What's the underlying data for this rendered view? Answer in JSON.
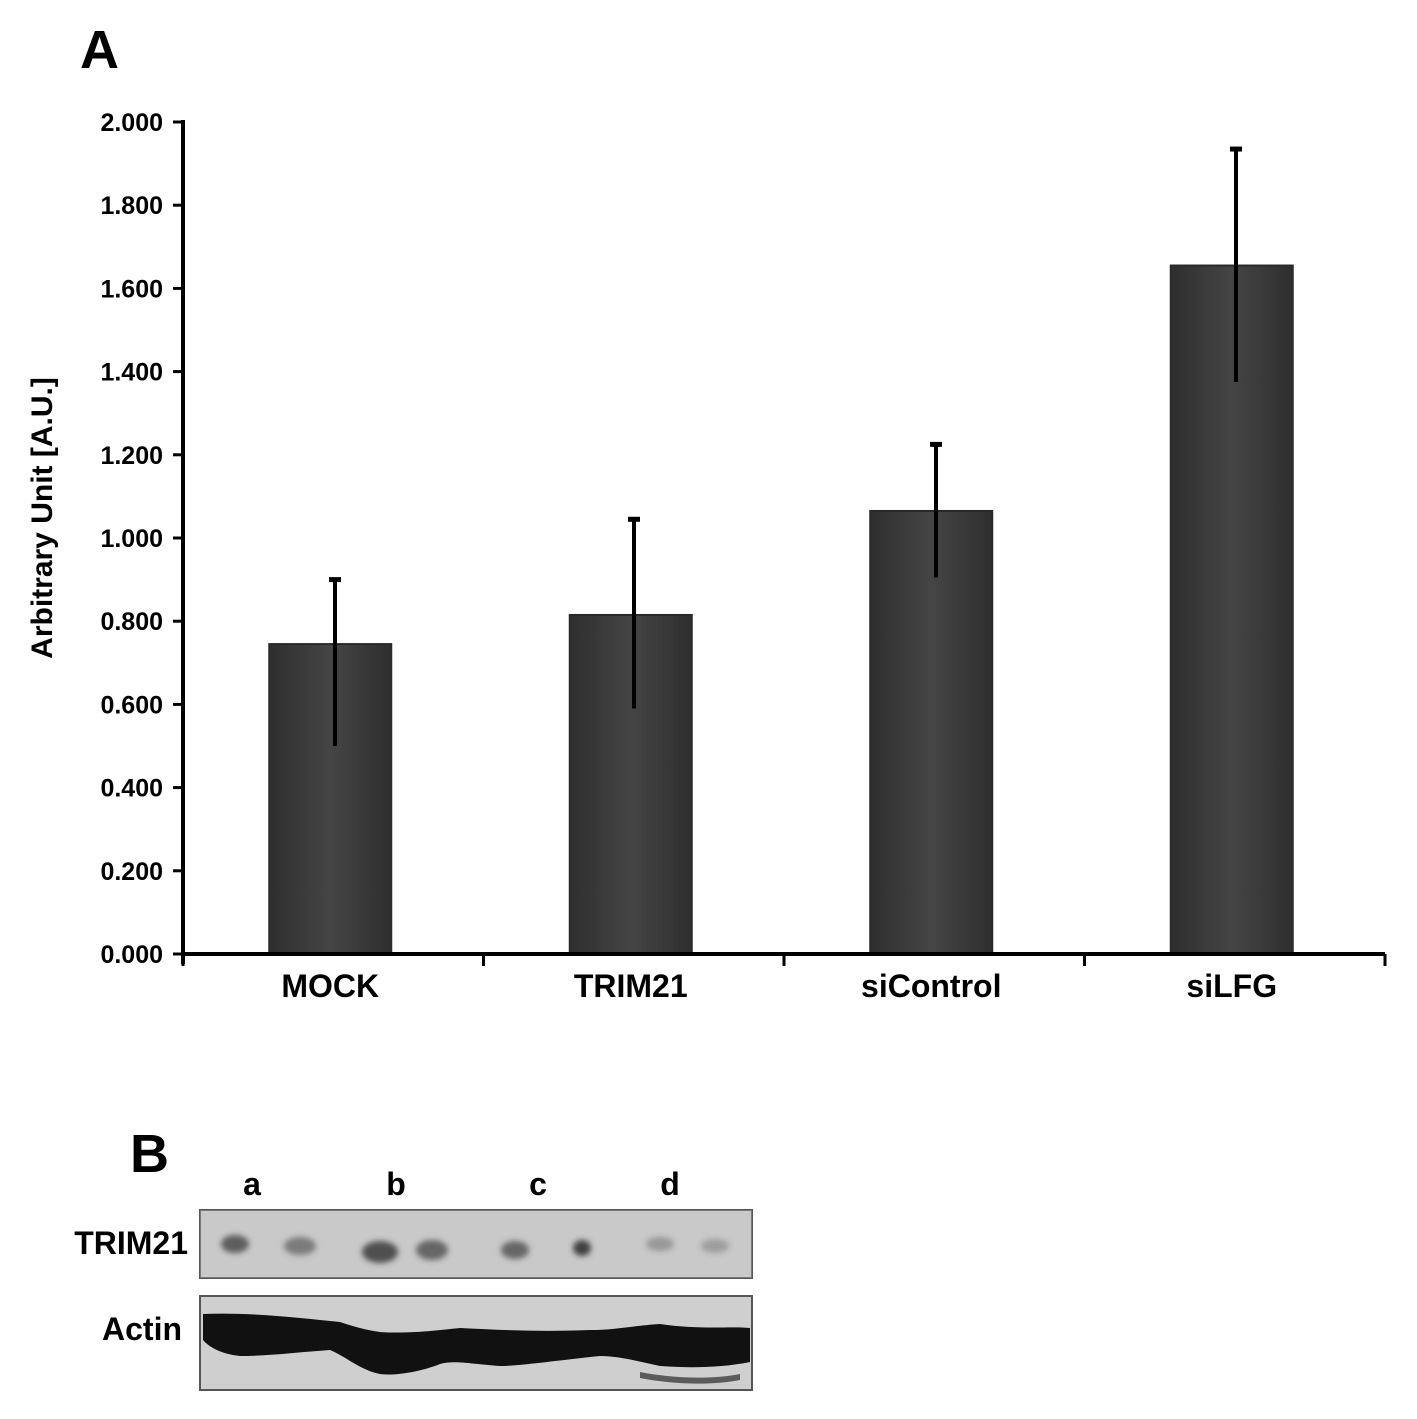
{
  "panel_a_label": "A",
  "panel_b_label": "B",
  "chart_data": {
    "type": "bar",
    "ylabel": "Arbitrary Unit [A.U.]",
    "xlabel": "",
    "ylim": [
      0,
      2
    ],
    "yticks": [
      "0.000",
      "0.200",
      "0.400",
      "0.600",
      "0.800",
      "1.000",
      "1.200",
      "1.400",
      "1.600",
      "1.800",
      "2.000"
    ],
    "categories": [
      "MOCK",
      "TRIM21",
      "siControl",
      "siLFG"
    ],
    "values": [
      0.745,
      0.815,
      1.065,
      1.655
    ],
    "error_low": [
      0.5,
      0.59,
      0.905,
      1.375
    ],
    "error_high": [
      0.9,
      1.045,
      1.225,
      1.935
    ],
    "grid": false,
    "colors": {
      "bar": "#3c3c3c",
      "bar_edge": "#2a2a2a",
      "axis": "#000000",
      "error": "#000000"
    }
  },
  "blot": {
    "lanes": [
      "a",
      "b",
      "c",
      "d"
    ],
    "rows": [
      {
        "label": "TRIM21"
      },
      {
        "label": "Actin"
      }
    ],
    "colors": {
      "membrane": "#cfcfcf",
      "band": "#111111",
      "spot": "#4a4a4a"
    }
  }
}
